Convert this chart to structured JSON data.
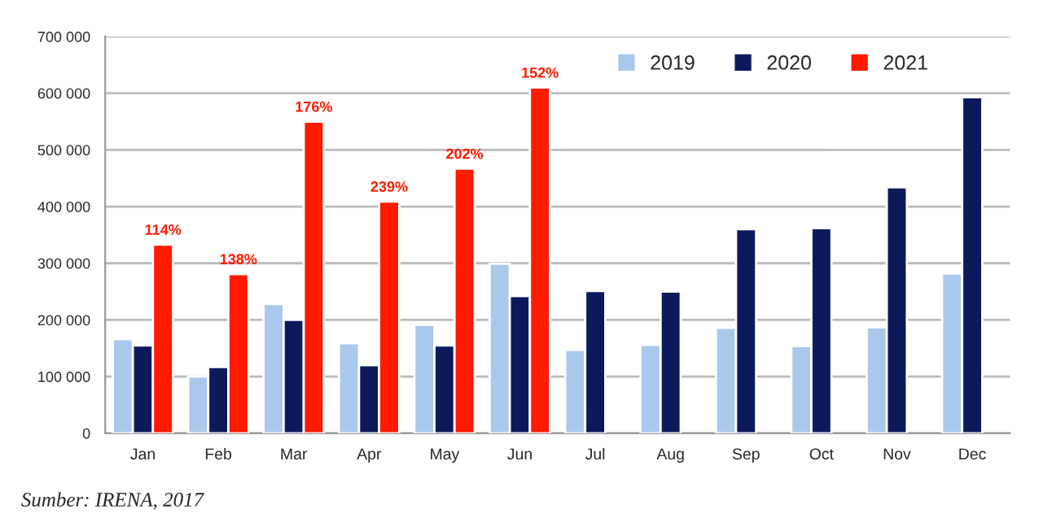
{
  "chart_data": {
    "type": "bar",
    "categories": [
      "Jan",
      "Feb",
      "Mar",
      "Apr",
      "May",
      "Jun",
      "Jul",
      "Aug",
      "Sep",
      "Oct",
      "Nov",
      "Dec"
    ],
    "series": [
      {
        "name": "2019",
        "color": "#a9c8ec",
        "values": [
          166000,
          100000,
          228000,
          159000,
          191000,
          299000,
          147000,
          156000,
          186000,
          154000,
          187000,
          282000
        ]
      },
      {
        "name": "2020",
        "color": "#0c1a5c",
        "values": [
          155000,
          117000,
          200000,
          120000,
          155000,
          242000,
          251000,
          250000,
          360000,
          362000,
          434000,
          593000
        ]
      },
      {
        "name": "2021",
        "color": "#ff1a00",
        "values": [
          333000,
          281000,
          550000,
          409000,
          467000,
          610000,
          null,
          null,
          null,
          null,
          null,
          null
        ]
      }
    ],
    "ylim": [
      0,
      700000
    ],
    "yticks": [
      {
        "value": 0,
        "label": "0"
      },
      {
        "value": 100000,
        "label": "100 000"
      },
      {
        "value": 200000,
        "label": "200 000"
      },
      {
        "value": 300000,
        "label": "300 000"
      },
      {
        "value": 400000,
        "label": "400 000"
      },
      {
        "value": 500000,
        "label": "500 000"
      },
      {
        "value": 600000,
        "label": "600 000"
      },
      {
        "value": 700000,
        "label": "700 000"
      }
    ],
    "grid": "y",
    "legend": "top right",
    "annotations": [
      "114%",
      "138%",
      "176%",
      "239%",
      "202%",
      "152%",
      "Sumber: IRENA, 2017"
    ]
  }
}
